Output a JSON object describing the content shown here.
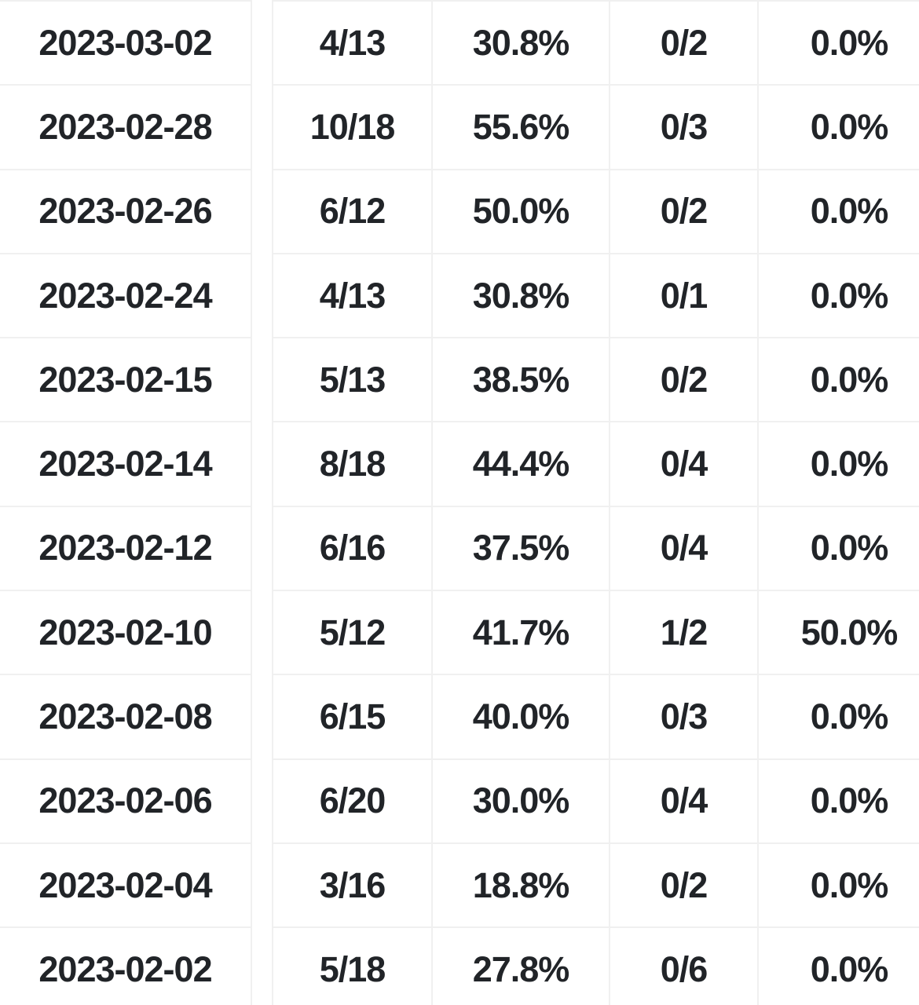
{
  "colors": {
    "background": "#ffffff",
    "grid_line": "#f0f0f0",
    "text": "#212428"
  },
  "table": {
    "columns": [
      "date",
      "made_attempted",
      "percentage",
      "made_attempted_2",
      "percentage_2"
    ],
    "rows": [
      [
        "2023-03-02",
        "4/13",
        "30.8%",
        "0/2",
        "0.0%"
      ],
      [
        "2023-02-28",
        "10/18",
        "55.6%",
        "0/3",
        "0.0%"
      ],
      [
        "2023-02-26",
        "6/12",
        "50.0%",
        "0/2",
        "0.0%"
      ],
      [
        "2023-02-24",
        "4/13",
        "30.8%",
        "0/1",
        "0.0%"
      ],
      [
        "2023-02-15",
        "5/13",
        "38.5%",
        "0/2",
        "0.0%"
      ],
      [
        "2023-02-14",
        "8/18",
        "44.4%",
        "0/4",
        "0.0%"
      ],
      [
        "2023-02-12",
        "6/16",
        "37.5%",
        "0/4",
        "0.0%"
      ],
      [
        "2023-02-10",
        "5/12",
        "41.7%",
        "1/2",
        "50.0%"
      ],
      [
        "2023-02-08",
        "6/15",
        "40.0%",
        "0/3",
        "0.0%"
      ],
      [
        "2023-02-06",
        "6/20",
        "30.0%",
        "0/4",
        "0.0%"
      ],
      [
        "2023-02-04",
        "3/16",
        "18.8%",
        "0/2",
        "0.0%"
      ],
      [
        "2023-02-02",
        "5/18",
        "27.8%",
        "0/6",
        "0.0%"
      ]
    ]
  }
}
